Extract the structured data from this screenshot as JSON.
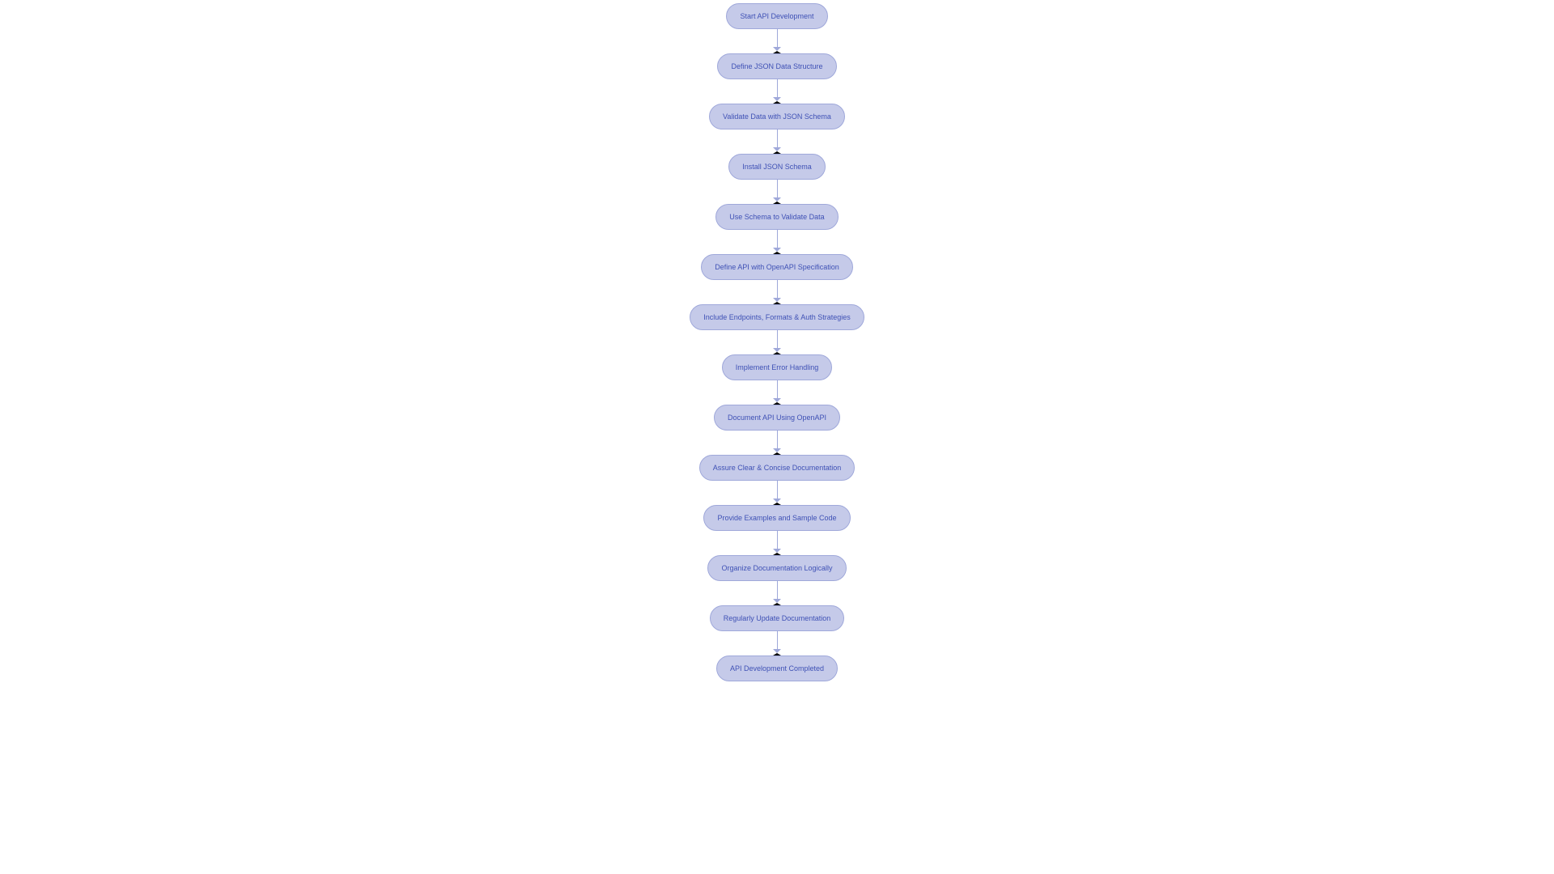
{
  "flowchart": {
    "type": "flowchart",
    "background_color": "#ffffff",
    "node_style": {
      "fill_color": "#c5cae9",
      "border_color": "#9fa8da",
      "border_width": 1,
      "border_radius": 16,
      "text_color": "#3f51b5",
      "font_size": 9,
      "font_weight": 400,
      "height": 32,
      "padding_horizontal": 16
    },
    "edge_style": {
      "line_color": "#9fa8da",
      "line_width": 1,
      "arrow_color": "#9fa8da",
      "arrow_size": 5,
      "gap_length": 27
    },
    "nodes": [
      {
        "id": "n1",
        "label": "Start API Development"
      },
      {
        "id": "n2",
        "label": "Define JSON Data Structure"
      },
      {
        "id": "n3",
        "label": "Validate Data with JSON Schema"
      },
      {
        "id": "n4",
        "label": "Install JSON Schema"
      },
      {
        "id": "n5",
        "label": "Use Schema to Validate Data"
      },
      {
        "id": "n6",
        "label": "Define API with OpenAPI Specification"
      },
      {
        "id": "n7",
        "label": "Include Endpoints, Formats & Auth Strategies"
      },
      {
        "id": "n8",
        "label": "Implement Error Handling"
      },
      {
        "id": "n9",
        "label": "Document API Using OpenAPI"
      },
      {
        "id": "n10",
        "label": "Assure Clear & Concise Documentation"
      },
      {
        "id": "n11",
        "label": "Provide Examples and Sample Code"
      },
      {
        "id": "n12",
        "label": "Organize Documentation Logically"
      },
      {
        "id": "n13",
        "label": "Regularly Update Documentation"
      },
      {
        "id": "n14",
        "label": "API Development Completed"
      }
    ]
  }
}
